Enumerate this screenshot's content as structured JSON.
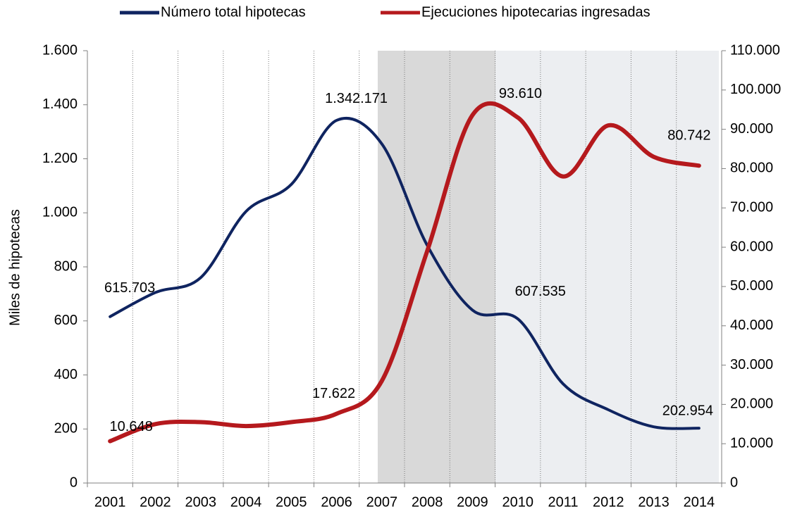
{
  "chart_data": {
    "type": "line",
    "y_axis_label": "Miles de hipotecas",
    "categories": [
      "2001",
      "2002",
      "2003",
      "2004",
      "2005",
      "2006",
      "2007",
      "2008",
      "2009",
      "2010",
      "2011",
      "2012",
      "2013",
      "2014"
    ],
    "series": [
      {
        "name": "Número total hipotecas",
        "color": "#0f2460",
        "axis": "y",
        "values": [
          615.703,
          705,
          760,
          1005,
          1105,
          1342.171,
          1255,
          880,
          640,
          607.535,
          367,
          271,
          208,
          202.954
        ],
        "value_labels": [
          "615.703",
          null,
          null,
          null,
          null,
          "1.342.171",
          null,
          null,
          null,
          "607.535",
          null,
          null,
          null,
          "202.954"
        ]
      },
      {
        "name": "Ejecuciones hipotecarias ingresadas",
        "color": "#b5191d",
        "axis": "y2",
        "values": [
          10648,
          15000,
          15500,
          14500,
          15500,
          17622,
          26000,
          59000,
          93610,
          93000,
          78000,
          91000,
          83000,
          80742
        ],
        "value_labels": [
          "10.648",
          null,
          null,
          null,
          null,
          "17.622",
          null,
          null,
          "93.610",
          null,
          null,
          null,
          null,
          "80.742"
        ]
      }
    ],
    "ylim": [
      0,
      1600
    ],
    "yticks": [
      0,
      200,
      400,
      600,
      800,
      {
        "value": 1000,
        "label": "1.000"
      },
      {
        "value": 1200,
        "label": "1.200"
      },
      {
        "value": 1400,
        "label": "1.400"
      },
      {
        "value": 1600,
        "label": "1.600"
      }
    ],
    "y2lim": [
      0,
      110000
    ],
    "y2ticks": [
      0,
      {
        "value": 10000,
        "label": "10.000"
      },
      {
        "value": 20000,
        "label": "20.000"
      },
      {
        "value": 30000,
        "label": "30.000"
      },
      {
        "value": 40000,
        "label": "40.000"
      },
      {
        "value": 50000,
        "label": "50.000"
      },
      {
        "value": 60000,
        "label": "60.000"
      },
      {
        "value": 70000,
        "label": "70.000"
      },
      {
        "value": 80000,
        "label": "80.000"
      },
      {
        "value": 90000,
        "label": "90.000"
      },
      {
        "value": 100000,
        "label": "100.000"
      },
      {
        "value": 110000,
        "label": "110.000"
      }
    ],
    "grid": "x",
    "legend": "top"
  }
}
